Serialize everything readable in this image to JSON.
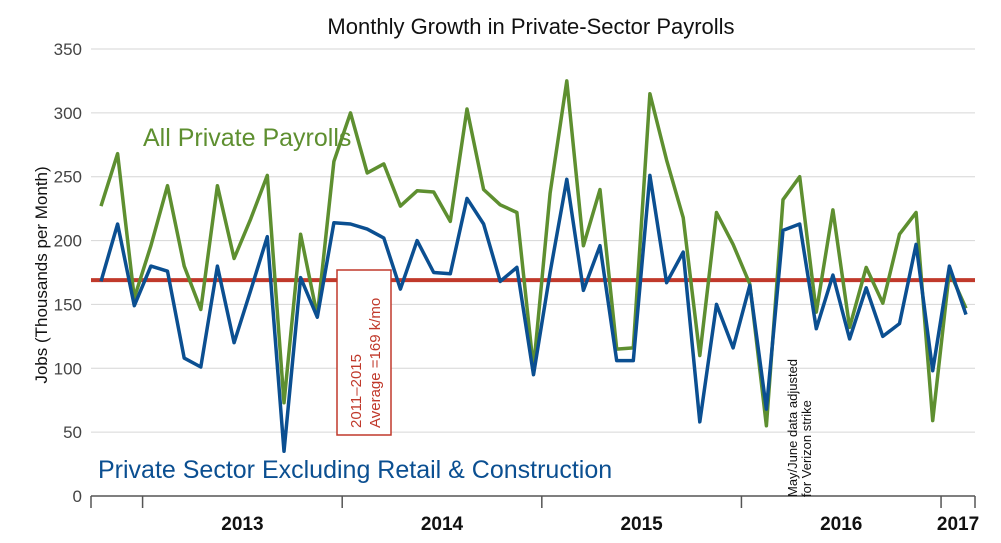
{
  "chart_data": {
    "type": "line",
    "title": "Monthly Growth in Private-Sector Payrolls",
    "xlabel": "",
    "ylabel": "Jobs (Thousands per Month)",
    "ylim": [
      0,
      350
    ],
    "yticks": [
      0,
      50,
      100,
      150,
      200,
      250,
      300,
      350
    ],
    "grid": true,
    "x_start": "2012-10",
    "x_end": "2017-05",
    "year_labels": [
      "2013",
      "2014",
      "2015",
      "2016",
      "2017"
    ],
    "series": [
      {
        "name": "All Private Payrolls",
        "color": "#5e8f30",
        "values": [
          227,
          268,
          155,
          196,
          243,
          180,
          146,
          243,
          186,
          217,
          251,
          73,
          205,
          141,
          262,
          300,
          253,
          260,
          227,
          239,
          238,
          215,
          303,
          240,
          228,
          222,
          100,
          237,
          325,
          196,
          240,
          115,
          116,
          315,
          263,
          218,
          110,
          222,
          197,
          166,
          55,
          232,
          250,
          144,
          224,
          132,
          179,
          151,
          205,
          222,
          59,
          176,
          147
        ]
      },
      {
        "name": "Private Sector Excluding Retail & Construction",
        "color": "#0b4f91",
        "values": [
          168,
          213,
          149,
          180,
          176,
          108,
          101,
          180,
          120,
          161,
          203,
          35,
          171,
          140,
          214,
          213,
          209,
          202,
          162,
          200,
          175,
          174,
          233,
          213,
          168,
          179,
          95,
          175,
          248,
          161,
          196,
          106,
          106,
          251,
          167,
          191,
          58,
          150,
          116,
          165,
          68,
          208,
          213,
          131,
          173,
          123,
          163,
          125,
          135,
          197,
          98,
          180,
          142
        ]
      }
    ],
    "reference_line": {
      "value": 169,
      "color": "#c0392b",
      "label_line1": "2011–2015",
      "label_line2": "Average =169 k/mo"
    },
    "annotation": {
      "line1": "May/June data adjusted",
      "line2": "for Verizon strike"
    }
  }
}
